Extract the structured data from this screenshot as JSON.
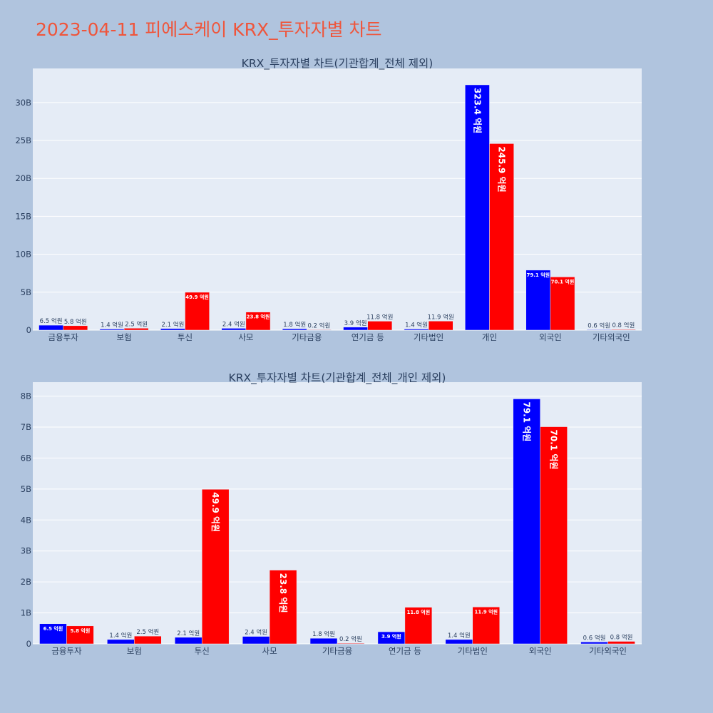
{
  "page": {
    "title": "2023-04-11 피에스케이 KRX_투자자별 차트"
  },
  "colors": {
    "buy": "#0000ff",
    "sell": "#ff0000",
    "plot_bg": "#e5ecf6",
    "page_bg": "#b0c4de",
    "grid": "#ffffff",
    "title": "#ef553b"
  },
  "chart_data": [
    {
      "type": "bar",
      "title": "KRX_투자자별 차트(기관합계_전체 제외)",
      "categories": [
        "금융투자",
        "보험",
        "투신",
        "사모",
        "기타금융",
        "연기금 등",
        "기타법인",
        "개인",
        "외국인",
        "기타외국인"
      ],
      "series": [
        {
          "color": "#0000ff",
          "values": [
            650000000,
            140000000,
            210000000,
            240000000,
            180000000,
            390000000,
            140000000,
            32340000000,
            7910000000,
            60000000
          ],
          "labels": [
            "6.5 억원",
            "1.4 억원",
            "2.1 억원",
            "2.4 억원",
            "1.8 억원",
            "3.9 억원",
            "1.4 억원",
            "323.4 억원",
            "79.1 억원",
            "0.6 억원"
          ]
        },
        {
          "color": "#ff0000",
          "values": [
            580000000,
            250000000,
            4990000000,
            2380000000,
            20000000,
            1180000000,
            1190000000,
            24590000000,
            7010000000,
            80000000
          ],
          "labels": [
            "5.8 억원",
            "2.5 억원",
            "49.9 억원",
            "23.8 억원",
            "0.2 억원",
            "11.8 억원",
            "11.9 억원",
            "245.9 억원",
            "70.1 억원",
            "0.8 억원"
          ]
        }
      ],
      "ylim": [
        0,
        34500000000
      ],
      "yticks": [
        0,
        5000000000,
        10000000000,
        15000000000,
        20000000000,
        25000000000,
        30000000000
      ],
      "yticklabels": [
        "0",
        "5B",
        "10B",
        "15B",
        "20B",
        "25B",
        "30B"
      ],
      "grid": true
    },
    {
      "type": "bar",
      "title": "KRX_투자자별 차트(기관합계_전체_개인 제외)",
      "categories": [
        "금융투자",
        "보험",
        "투신",
        "사모",
        "기타금융",
        "연기금 등",
        "기타법인",
        "외국인",
        "기타외국인"
      ],
      "series": [
        {
          "color": "#0000ff",
          "values": [
            650000000,
            140000000,
            210000000,
            240000000,
            180000000,
            390000000,
            140000000,
            7910000000,
            60000000
          ],
          "labels": [
            "6.5 억원",
            "1.4 억원",
            "2.1 억원",
            "2.4 억원",
            "1.8 억원",
            "3.9 억원",
            "1.4 억원",
            "79.1 억원",
            "0.6 억원"
          ]
        },
        {
          "color": "#ff0000",
          "values": [
            580000000,
            250000000,
            4990000000,
            2380000000,
            20000000,
            1180000000,
            1190000000,
            7010000000,
            80000000
          ],
          "labels": [
            "5.8 억원",
            "2.5 억원",
            "49.9 억원",
            "23.8 억원",
            "0.2 억원",
            "11.8 억원",
            "11.9 억원",
            "70.1 억원",
            "0.8 억원"
          ]
        }
      ],
      "ylim": [
        0,
        8450000000
      ],
      "yticks": [
        0,
        1000000000,
        2000000000,
        3000000000,
        4000000000,
        5000000000,
        6000000000,
        7000000000,
        8000000000
      ],
      "yticklabels": [
        "0",
        "1B",
        "2B",
        "3B",
        "4B",
        "5B",
        "6B",
        "7B",
        "8B"
      ],
      "grid": true
    }
  ]
}
